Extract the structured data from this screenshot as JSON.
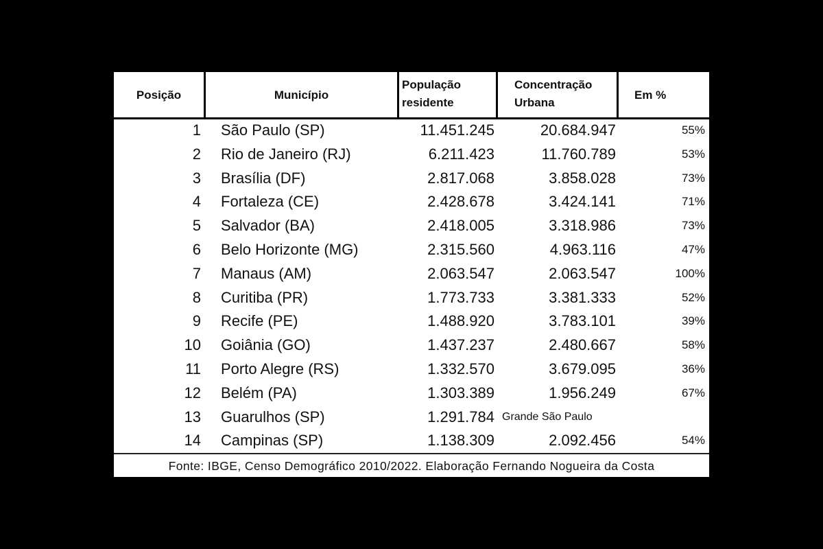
{
  "table": {
    "header": [
      "Posição",
      "Município",
      "População residente",
      "Concentração Urbana",
      "Em %"
    ],
    "rows": [
      [
        "1",
        "São Paulo (SP)",
        "11.451.245",
        "20.684.947",
        "55%"
      ],
      [
        "2",
        "Rio de Janeiro (RJ)",
        "6.211.423",
        "11.760.789",
        "53%"
      ],
      [
        "3",
        "Brasília (DF)",
        "2.817.068",
        "3.858.028",
        "73%"
      ],
      [
        "4",
        "Fortaleza (CE)",
        "2.428.678",
        "3.424.141",
        "71%"
      ],
      [
        "5",
        "Salvador (BA)",
        "2.418.005",
        "3.318.986",
        "73%"
      ],
      [
        "6",
        "Belo Horizonte (MG)",
        "2.315.560",
        "4.963.116",
        "47%"
      ],
      [
        "7",
        "Manaus (AM)",
        "2.063.547",
        "2.063.547",
        "100%"
      ],
      [
        "8",
        "Curitiba (PR)",
        "1.773.733",
        "3.381.333",
        "52%"
      ],
      [
        "9",
        "Recife (PE)",
        "1.488.920",
        "3.783.101",
        "39%"
      ],
      [
        "10",
        "Goiânia (GO)",
        "1.437.237",
        "2.480.667",
        "58%"
      ],
      [
        "11",
        "Porto Alegre (RS)",
        "1.332.570",
        "3.679.095",
        "36%"
      ],
      [
        "12",
        "Belém (PA)",
        "1.303.389",
        "1.956.249",
        "67%"
      ],
      [
        "13",
        "Guarulhos (SP)",
        "1.291.784",
        "Grande São Paulo"
      ],
      [
        "14",
        "Campinas (SP)",
        "1.138.309",
        "2.092.456",
        "54%"
      ]
    ],
    "footer": "Fonte: IBGE, Censo Demográfico 2010/2022. Elaboração Fernando Nogueira da Costa"
  }
}
